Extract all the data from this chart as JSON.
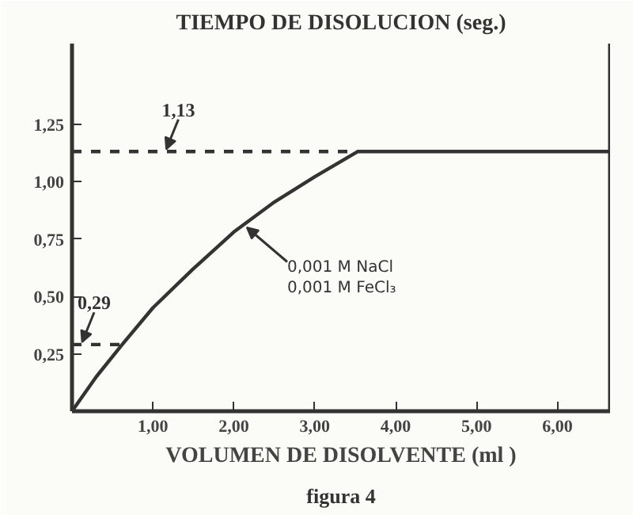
{
  "chart_data": {
    "type": "line",
    "ylabel": "TIEMPO DE DISOLUCION (seg.)",
    "xlabel": "VOLUMEN DE DISOLVENTE (ml )",
    "x": [
      0,
      0.3,
      0.62,
      1.0,
      1.5,
      2.0,
      2.5,
      3.0,
      3.53,
      6.65
    ],
    "series": [
      {
        "color": "#333333",
        "values": [
          0,
          0.15,
          0.29,
          0.45,
          0.62,
          0.78,
          0.91,
          1.02,
          1.13,
          1.13
        ]
      }
    ],
    "xlim": [
      0,
      6.65
    ],
    "ylim": [
      0,
      1.6
    ],
    "xticks": [
      {
        "value": 1,
        "label": "1,00"
      },
      {
        "value": 2,
        "label": "2,00"
      },
      {
        "value": 3,
        "label": "3,00"
      },
      {
        "value": 4,
        "label": "4,00"
      },
      {
        "value": 5,
        "label": "5,00"
      },
      {
        "value": 6,
        "label": "6,00"
      }
    ],
    "yticks": [
      {
        "value": 0.25,
        "label": "0,25"
      },
      {
        "value": 0.5,
        "label": "0,50"
      },
      {
        "value": 0.75,
        "label": "0,75"
      },
      {
        "value": 1.0,
        "label": "1,00"
      },
      {
        "value": 1.25,
        "label": "1,25"
      }
    ],
    "ref_lines": [
      {
        "axis": "y",
        "value": 1.13,
        "label": "1,13",
        "line_style": "dashed"
      },
      {
        "axis": "y",
        "value": 0.29,
        "label": "0,29",
        "line_style": "dashed"
      }
    ],
    "annotations": [
      {
        "text": "0,001 M NaCl\n0,001 M FeCl₃",
        "x": 2.16,
        "y": 0.8
      },
      "figura 4"
    ],
    "grid": false,
    "line_style": "solid",
    "marker": "none"
  }
}
